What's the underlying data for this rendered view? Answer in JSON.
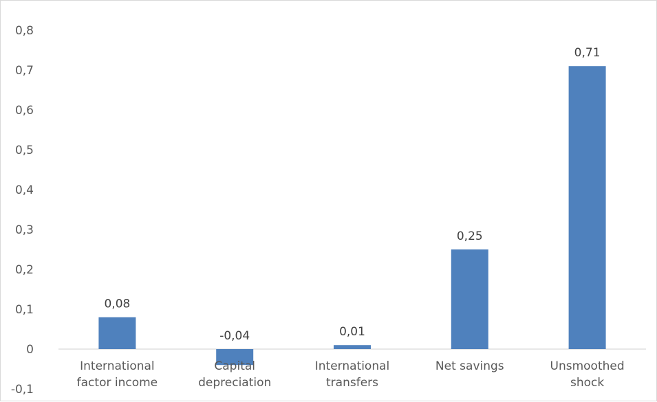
{
  "chart_data": {
    "type": "bar",
    "categories": [
      [
        "International",
        "factor income"
      ],
      [
        "Capital",
        "depreciation"
      ],
      [
        "International",
        "transfers"
      ],
      [
        "Net savings"
      ],
      [
        "Unsmoothed",
        "shock"
      ]
    ],
    "values": [
      0.08,
      -0.04,
      0.01,
      0.25,
      0.71
    ],
    "data_labels": [
      "0,08",
      "-0,04",
      "0,01",
      "0,25",
      "0,71"
    ],
    "yticks": [
      -0.1,
      0,
      0.1,
      0.2,
      0.3,
      0.4,
      0.5,
      0.6,
      0.7,
      0.8
    ],
    "ytick_labels": [
      "-0,1",
      "0",
      "0,1",
      "0,2",
      "0,3",
      "0,4",
      "0,5",
      "0,6",
      "0,7",
      "0,8"
    ],
    "ylim": [
      -0.1,
      0.8
    ],
    "grid": false,
    "legend": "none",
    "bar_color": "#4f81bd",
    "axis_color": "#d9d9d9"
  }
}
